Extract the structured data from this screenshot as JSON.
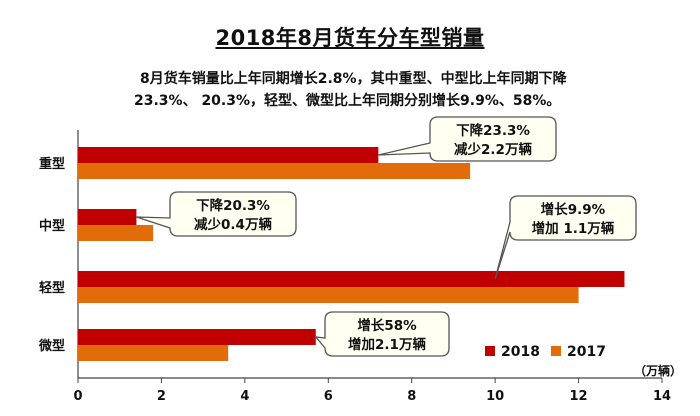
{
  "page": {
    "title": "2018年8月货车分车型销量",
    "subtitle_line1": "8月货车销量比上年同期增长2.8%，其中重型、中型比上年同期下降",
    "subtitle_line2": "23.3%、 20.3%，轻型、微型比上年同期分别增长9.9%、58%。"
  },
  "chart_data": {
    "type": "bar",
    "orientation": "horizontal",
    "title": "2018年8月货车分车型销量",
    "categories": [
      "重型",
      "中型",
      "轻型",
      "微型"
    ],
    "series": [
      {
        "name": "2018",
        "color": "#C00000",
        "values": [
          7.2,
          1.4,
          13.1,
          5.7
        ]
      },
      {
        "name": "2017",
        "color": "#E36C0A",
        "values": [
          9.4,
          1.8,
          12.0,
          3.6
        ]
      }
    ],
    "xlim": [
      0,
      14
    ],
    "xticks": [
      "0",
      "2",
      "4",
      "6",
      "8",
      "10",
      "12",
      "14"
    ],
    "xlabel": "",
    "unit_label": "（万辆）",
    "legend_position": "bottom-right",
    "grid": false,
    "annotations": [
      {
        "category": "重型",
        "line1": "下降23.3%",
        "line2": "减少2.2万辆"
      },
      {
        "category": "中型",
        "line1": "下降20.3%",
        "line2": "减少0.4万辆"
      },
      {
        "category": "轻型",
        "line1": "增长9.9%",
        "line2": "增加 1.1万辆"
      },
      {
        "category": "微型",
        "line1": "增长58%",
        "line2": "增加2.1万辆"
      }
    ]
  }
}
